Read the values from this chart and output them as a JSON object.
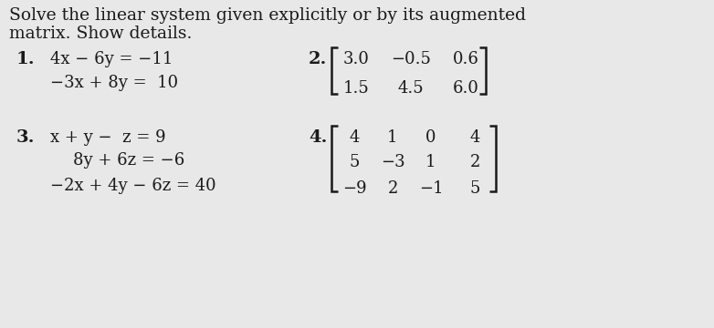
{
  "title_line1": "Solve the linear system given explicitly or by its augmented",
  "title_line2": "matrix. Show details.",
  "prob1_label": "1.",
  "prob1_eq1": "4x − 6y = −11",
  "prob1_eq2": "−3x + 8y =  10",
  "prob2_label": "2.",
  "prob2_row1": [
    "3.0",
    "−0.5",
    "0.6"
  ],
  "prob2_row2": [
    "1.5",
    "4.5",
    "6.0"
  ],
  "prob3_label": "3.",
  "prob3_eq1": "x + y −  z = 9",
  "prob3_eq2": "8y + 6z = −6",
  "prob3_eq3": "−2x + 4y − 6z = 40",
  "prob4_label": "4.",
  "prob4_row1": [
    "4",
    "1",
    "0",
    "4"
  ],
  "prob4_row2": [
    "5",
    "−3",
    "1",
    "2"
  ],
  "prob4_row3": [
    "−9",
    "2",
    "−1",
    "5"
  ],
  "font_size_title": 13.5,
  "font_size_label": 14,
  "font_size_text": 13,
  "font_size_matrix": 13,
  "text_color": "#1a1a1a",
  "bracket_color": "#1a1a1a",
  "face_color": "#e8e8e8"
}
